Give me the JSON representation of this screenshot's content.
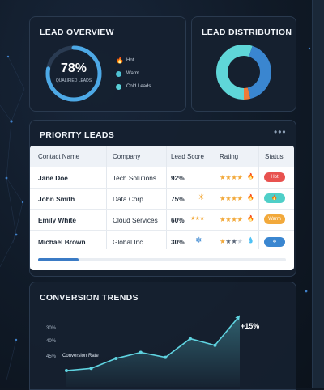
{
  "lead_overview": {
    "title": "LEAD OVERVIEW",
    "percent": "78%",
    "percent_value": 0.78,
    "subtitle": "QUALIFIED LEADS",
    "legend": [
      {
        "label": "Hot",
        "color": "#f08a3c",
        "icon": "flame-icon"
      },
      {
        "label": "Warm",
        "color": "#4fc3d4",
        "icon": "dot-icon"
      },
      {
        "label": "Cold Leads",
        "color": "#5ad1d9",
        "icon": "dot-icon"
      }
    ]
  },
  "lead_distribution": {
    "title": "LEAD DISTRIBUTION",
    "segments": [
      {
        "value": 0.55,
        "color": "#5fd6d8"
      },
      {
        "value": 0.41,
        "color": "#3a86d0"
      },
      {
        "value": 0.04,
        "color": "#ef7b3a"
      }
    ]
  },
  "priority_leads": {
    "title": "PRIORITY LEADS",
    "more_icon": "more-dots-icon",
    "columns": [
      "Contact Name",
      "Company",
      "Lead Score",
      "Rating",
      "Status"
    ],
    "rows": [
      {
        "name": "Jane Doe",
        "company": "Tech Solutions",
        "score": "92%",
        "score_icon": "",
        "stars": 4,
        "temp_icon": "flame-icon",
        "status": "Hot",
        "status_color": "#e8524f"
      },
      {
        "name": "John Smith",
        "company": "Data Corp",
        "score": "75%",
        "score_icon": "sun-icon",
        "stars": 4,
        "temp_icon": "flame-icon",
        "status": "🔥",
        "status_color": "#4fcfc8"
      },
      {
        "name": "Emily White",
        "company": "Cloud Services",
        "score": "60%",
        "score_icon": "stars-icon",
        "stars": 4,
        "temp_icon": "flame-icon",
        "status": "Warm",
        "status_color": "#f2a93b"
      },
      {
        "name": "Michael Brown",
        "company": "Global Inc",
        "score": "30%",
        "score_icon": "snowflake-icon",
        "stars": 3,
        "temp_icon": "drop-icon",
        "status": "❄",
        "status_color": "#3a86d0"
      }
    ],
    "glyphs": {
      "sun": "☀",
      "small_stars": "★★★",
      "snowflake": "❄",
      "flame": "🔥",
      "drop": "💧"
    }
  },
  "conversion_trends": {
    "title": "CONVERSION TRENDS",
    "y_labels": [
      "30%",
      "40%",
      "45%"
    ],
    "series_label": "Conversion Rate",
    "delta": "+15%",
    "line_color": "#5fd3e0",
    "chart_data": {
      "type": "line",
      "x": [
        1,
        2,
        3,
        4,
        5,
        6,
        7,
        8
      ],
      "series": [
        {
          "name": "Conversion Rate",
          "values": [
            0.0,
            0.04,
            0.22,
            0.33,
            0.24,
            0.58,
            0.46,
            1.0
          ]
        }
      ]
    }
  }
}
